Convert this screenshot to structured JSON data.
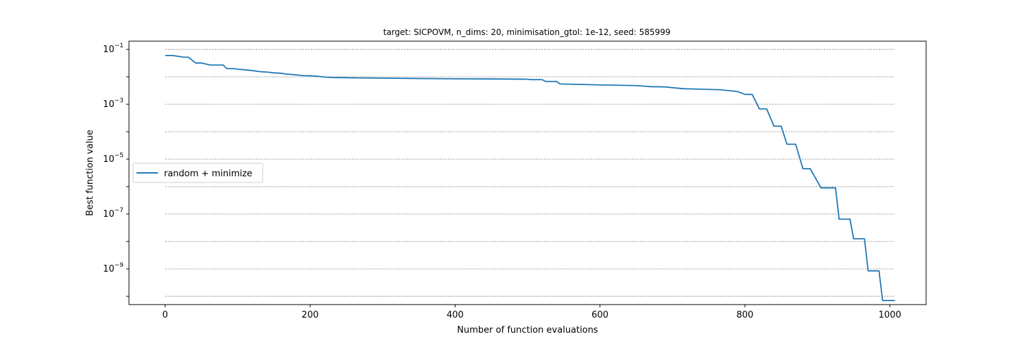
{
  "chart_data": {
    "type": "line",
    "title": "target: SICPOVM, n_dims: 20, minimisation_gtol: 1e-12, seed: 585999",
    "xlabel": "Number of function evaluations",
    "ylabel": "Best function value",
    "xlim": [
      -50,
      1050
    ],
    "ylim": [
      5e-11,
      0.2
    ],
    "yscale": "log",
    "x_ticks": [
      0,
      200,
      400,
      600,
      800,
      1000
    ],
    "y_ticks": [
      {
        "value": 0.1,
        "base": "10",
        "exp": "−1"
      },
      {
        "value": 0.001,
        "base": "10",
        "exp": "−3"
      },
      {
        "value": 1e-05,
        "base": "10",
        "exp": "−5"
      },
      {
        "value": 1e-07,
        "base": "10",
        "exp": "−7"
      },
      {
        "value": 1e-09,
        "base": "10",
        "exp": "−9"
      }
    ],
    "grid": {
      "axis": "y",
      "minor_decades": true,
      "style": "dashed"
    },
    "legend": {
      "position": "center-left"
    },
    "series": [
      {
        "name": "random + minimize",
        "color": "#1f77b4",
        "x": [
          0,
          10,
          20,
          25,
          32,
          42,
          50,
          55,
          62,
          70,
          80,
          85,
          95,
          100,
          110,
          120,
          130,
          140,
          150,
          160,
          168,
          175,
          185,
          192,
          200,
          210,
          220,
          232,
          260,
          300,
          350,
          400,
          450,
          500,
          505,
          520,
          525,
          540,
          545,
          600,
          650,
          660,
          670,
          690,
          715,
          765,
          780,
          790,
          800,
          810,
          820,
          830,
          840,
          850,
          858,
          865,
          870,
          880,
          885,
          890,
          905,
          925,
          930,
          945,
          950,
          965,
          970,
          985,
          990,
          1000,
          1007
        ],
        "y": [
          0.06,
          0.06,
          0.055,
          0.052,
          0.052,
          0.032,
          0.032,
          0.03,
          0.027,
          0.027,
          0.027,
          0.02,
          0.02,
          0.019,
          0.018,
          0.017,
          0.0155,
          0.015,
          0.014,
          0.0135,
          0.0125,
          0.0122,
          0.0115,
          0.011,
          0.011,
          0.0105,
          0.0098,
          0.0095,
          0.0092,
          0.009,
          0.0087,
          0.0085,
          0.0084,
          0.0082,
          0.0079,
          0.0079,
          0.0068,
          0.0068,
          0.0055,
          0.0051,
          0.0048,
          0.0046,
          0.0044,
          0.0043,
          0.0037,
          0.0034,
          0.0031,
          0.0029,
          0.0023,
          0.0023,
          0.00068,
          0.00068,
          0.00016,
          0.00016,
          3.5e-05,
          3.5e-05,
          3.5e-05,
          4.5e-06,
          4.5e-06,
          4.5e-06,
          9e-07,
          9e-07,
          6.5e-08,
          6.5e-08,
          1.25e-08,
          1.25e-08,
          8.5e-10,
          8.5e-10,
          7e-11,
          7e-11,
          7e-11
        ]
      }
    ]
  }
}
